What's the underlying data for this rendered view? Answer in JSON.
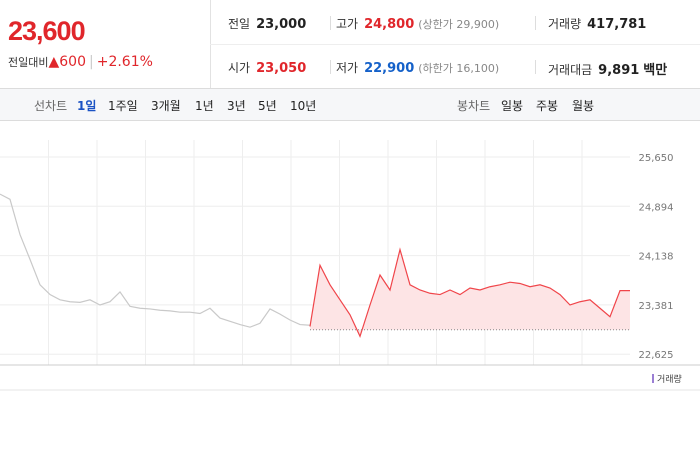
{
  "quote": {
    "price": "23,600",
    "change_label": "전일대비",
    "change_arrow": "▲",
    "change": "600",
    "change_rate": "+2.61%",
    "color": "#e0262b"
  },
  "summary": {
    "rows": [
      [
        {
          "label": "전일",
          "value": "23,000",
          "color": "#222222"
        },
        {
          "label": "고가",
          "value": "24,800",
          "note": "(상한가 29,900)",
          "color": "#e0262b"
        },
        {
          "label": "거래량",
          "value": "417,781",
          "color": "#222222"
        }
      ],
      [
        {
          "label": "시가",
          "value": "23,050",
          "color": "#e0262b"
        },
        {
          "label": "저가",
          "value": "22,900",
          "note": "(하한가 16,100)",
          "color": "#1561c9"
        },
        {
          "label": "거래대금",
          "value": "9,891",
          "unit": "백만",
          "color": "#222222"
        }
      ]
    ]
  },
  "line_tabs": {
    "label": "선차트",
    "items": [
      "1일",
      "1주일",
      "3개월",
      "1년",
      "3년",
      "5년",
      "10년"
    ],
    "selected": 0
  },
  "candle_tabs": {
    "label": "봉차트",
    "items": [
      "일봉",
      "주봉",
      "월봉"
    ]
  },
  "chart_data": {
    "type": "line",
    "ylim": [
      22460,
      26140
    ],
    "yticks": [
      {
        "value": 25650,
        "label": "25,650"
      },
      {
        "value": 24894,
        "label": "24,894"
      },
      {
        "value": 24138,
        "label": "24,138"
      },
      {
        "value": 23381,
        "label": "23,381"
      },
      {
        "value": 22625,
        "label": "22,625"
      }
    ],
    "grid": true,
    "baseline": 23000,
    "series": [
      {
        "color": "#c9c9c9",
        "values": [
          25080,
          25000,
          24460,
          24080,
          23690,
          23540,
          23460,
          23430,
          23420,
          23460,
          23380,
          23430,
          23580,
          23360,
          23330,
          23320,
          23300,
          23290,
          23270,
          23270,
          23250,
          23330,
          23180,
          23130,
          23080,
          23040,
          23100,
          23320,
          23240,
          23150,
          23080,
          23070,
          null,
          null,
          null,
          null,
          null,
          null,
          null,
          null,
          null,
          null,
          null,
          null,
          null,
          null,
          null,
          null,
          null,
          null,
          null,
          null,
          null,
          null,
          null,
          null,
          null,
          null,
          null,
          null,
          null,
          null,
          null,
          null
        ]
      },
      {
        "color": "#f0454a",
        "fill": "#fde4e5",
        "values": [
          null,
          null,
          null,
          null,
          null,
          null,
          null,
          null,
          null,
          null,
          null,
          null,
          null,
          null,
          null,
          null,
          null,
          null,
          null,
          null,
          null,
          null,
          null,
          null,
          null,
          null,
          null,
          null,
          null,
          null,
          null,
          23050,
          23990,
          23690,
          23460,
          23230,
          22900,
          23380,
          23840,
          23610,
          24230,
          23690,
          23610,
          23560,
          23540,
          23610,
          23540,
          23640,
          23610,
          23660,
          23690,
          23730,
          23710,
          23660,
          23690,
          23640,
          23540,
          23380,
          23430,
          23460,
          23330,
          23200,
          23600,
          23600
        ]
      }
    ],
    "volume_legend": "거래량",
    "volume_color": "#9b7fd4"
  }
}
